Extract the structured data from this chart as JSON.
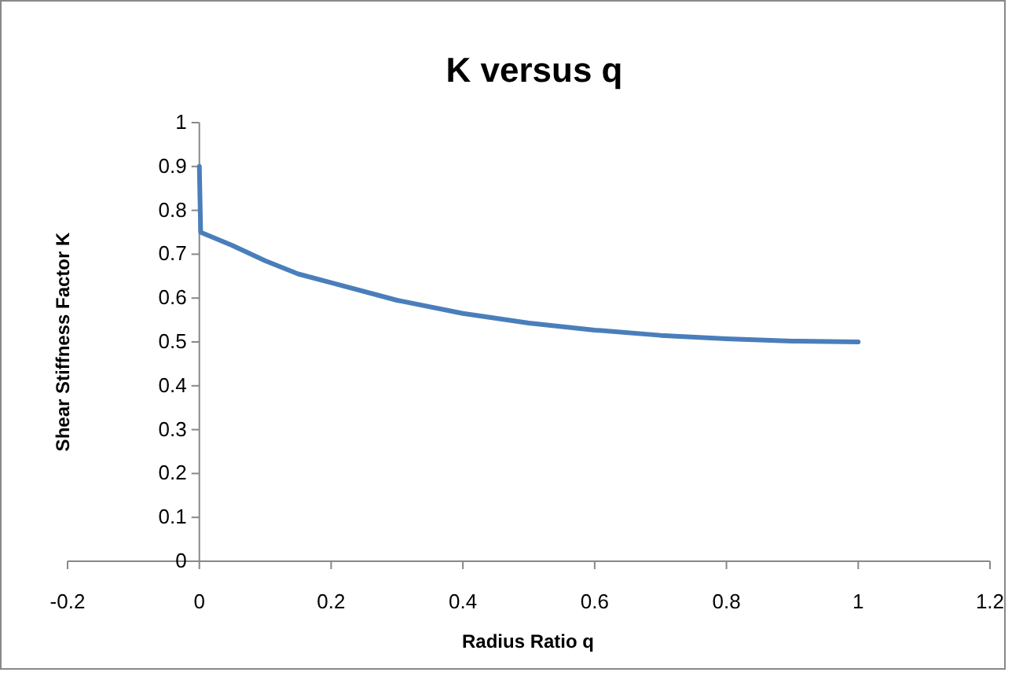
{
  "chart_data": {
    "type": "line",
    "title": "K versus q",
    "xlabel": "Radius Ratio q",
    "ylabel": "Shear Stiffness Factor K",
    "x": [
      0,
      0.002,
      0.05,
      0.1,
      0.15,
      0.2,
      0.3,
      0.4,
      0.5,
      0.6,
      0.7,
      0.8,
      0.9,
      1
    ],
    "series": [
      {
        "color": "#4a7ebb",
        "values": [
          0.9,
          0.75,
          0.72,
          0.685,
          0.655,
          0.635,
          0.595,
          0.565,
          0.543,
          0.527,
          0.515,
          0.507,
          0.502,
          0.5
        ]
      }
    ],
    "xlim": [
      -0.2,
      1.2
    ],
    "xticks": [
      -0.2,
      0,
      0.2,
      0.4,
      0.6,
      0.8,
      1,
      1.2
    ],
    "ylim": [
      0,
      1
    ],
    "yticks": [
      0,
      0.1,
      0.2,
      0.3,
      0.4,
      0.5,
      0.6,
      0.7,
      0.8,
      0.9,
      1
    ],
    "grid": false,
    "marker": "none",
    "line_style": "solid"
  }
}
